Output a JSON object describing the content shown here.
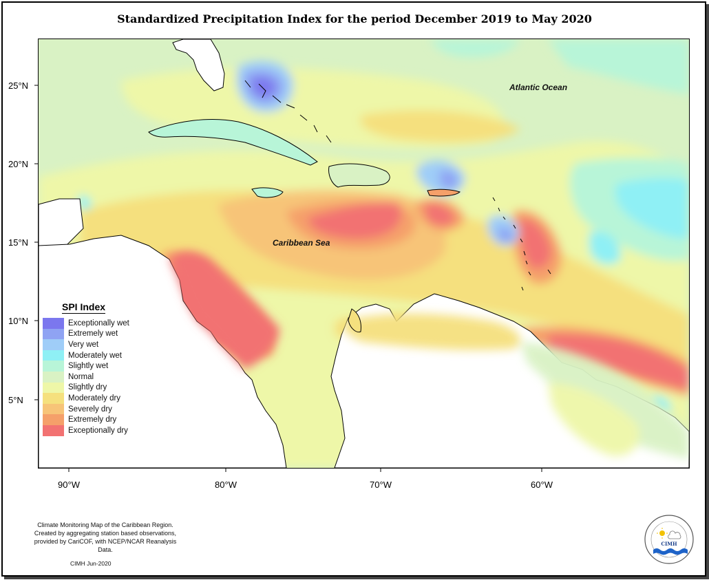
{
  "title": "Standardized Precipitation Index for the period December 2019 to May 2020",
  "y_ticks": [
    "25°N",
    "20°N",
    "15°N",
    "10°N",
    "5°N"
  ],
  "x_ticks": [
    "90°W",
    "80°W",
    "70°W",
    "60°W"
  ],
  "map_labels": {
    "atlantic": "Atlantic Ocean",
    "caribbean": "Caribbean Sea"
  },
  "legend": {
    "title": "SPI Index",
    "items": [
      {
        "label": "Exceptionally wet",
        "color": "#7b77ee"
      },
      {
        "label": "Extremely wet",
        "color": "#8fa3f3"
      },
      {
        "label": "Very wet",
        "color": "#9fcdf8"
      },
      {
        "label": "Moderately wet",
        "color": "#8ff0f5"
      },
      {
        "label": "Slightly wet",
        "color": "#b8f5d8"
      },
      {
        "label": "Normal",
        "color": "#d9f2c4"
      },
      {
        "label": "Slightly dry",
        "color": "#eef7a8"
      },
      {
        "label": "Moderately dry",
        "color": "#f5e07e"
      },
      {
        "label": "Severely dry",
        "color": "#f7c478"
      },
      {
        "label": "Extremely dry",
        "color": "#f5a06a"
      },
      {
        "label": "Exceptionally dry",
        "color": "#f27272"
      }
    ]
  },
  "credits": [
    "Climate Monitoring Map of the Caribbean Region.",
    "Created by aggregating station based observations,",
    "provided by CariCOF, with NCEP/NCAR Reanalysis Data."
  ],
  "date_stamp": "CIMH Jun-2020",
  "logo_text": "CIMH"
}
